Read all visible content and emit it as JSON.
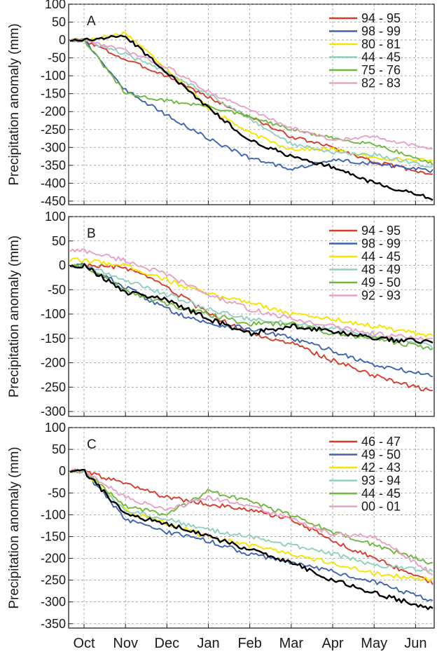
{
  "chart_data": [
    {
      "type": "line",
      "panel_label": "A",
      "ylabel": "Precipitation anomaly (mm)",
      "ylim": [
        -460,
        100
      ],
      "yticks": [
        100,
        50,
        0,
        -50,
        -100,
        -150,
        -200,
        -250,
        -300,
        -350,
        -400,
        -450
      ],
      "x": [
        "Oct",
        "Nov",
        "Dec",
        "Jan",
        "Feb",
        "Mar",
        "Apr",
        "May",
        "Jun"
      ],
      "grid": "dashed",
      "legend_position": "top-right",
      "series": [
        {
          "name": "94 - 95",
          "color": "#d93b2b",
          "values": [
            0,
            -55,
            -100,
            -160,
            -215,
            -270,
            -300,
            -340,
            -365
          ]
        },
        {
          "name": "98 - 99",
          "color": "#3f63b0",
          "values": [
            0,
            -140,
            -210,
            -275,
            -330,
            -360,
            -335,
            -345,
            -360
          ]
        },
        {
          "name": "80 - 81",
          "color": "#f5e400",
          "values": [
            0,
            20,
            -80,
            -190,
            -260,
            -305,
            -305,
            -330,
            -335
          ]
        },
        {
          "name": "44 - 45",
          "color": "#8fd0bf",
          "values": [
            0,
            -40,
            -90,
            -150,
            -220,
            -290,
            -315,
            -320,
            -345
          ]
        },
        {
          "name": "75 - 76",
          "color": "#6fb83d",
          "values": [
            0,
            -150,
            -170,
            -185,
            -215,
            -250,
            -275,
            -290,
            -330
          ]
        },
        {
          "name": "82 - 83",
          "color": "#e8a0c8",
          "values": [
            0,
            -30,
            -75,
            -145,
            -195,
            -245,
            -280,
            -270,
            -295
          ]
        },
        {
          "name": "",
          "color": "#000000",
          "values": [
            0,
            10,
            -90,
            -190,
            -280,
            -325,
            -355,
            -400,
            -430
          ]
        }
      ]
    },
    {
      "type": "line",
      "panel_label": "B",
      "ylabel": "Precipitation anomaly (mm)",
      "ylim": [
        -310,
        100
      ],
      "yticks": [
        100,
        50,
        0,
        -50,
        -100,
        -150,
        -200,
        -250,
        -300
      ],
      "x": [
        "Oct",
        "Nov",
        "Dec",
        "Jan",
        "Feb",
        "Mar",
        "Apr",
        "May",
        "Jun"
      ],
      "grid": "dashed",
      "legend_position": "top-right",
      "series": [
        {
          "name": "94 - 95",
          "color": "#d93b2b",
          "values": [
            0,
            -5,
            -45,
            -100,
            -140,
            -160,
            -195,
            -225,
            -250
          ]
        },
        {
          "name": "98 - 99",
          "color": "#3f63b0",
          "values": [
            0,
            -45,
            -90,
            -120,
            -130,
            -150,
            -175,
            -205,
            -220
          ]
        },
        {
          "name": "44 - 45",
          "color": "#f5e400",
          "values": [
            10,
            0,
            -30,
            -60,
            -75,
            -100,
            -110,
            -125,
            -140
          ]
        },
        {
          "name": "48 - 49",
          "color": "#8fd0bf",
          "values": [
            0,
            -30,
            -60,
            -90,
            -110,
            -120,
            -130,
            -145,
            -160
          ]
        },
        {
          "name": "49 - 50",
          "color": "#6fb83d",
          "values": [
            0,
            -50,
            -80,
            -100,
            -120,
            -120,
            -140,
            -150,
            -165
          ]
        },
        {
          "name": "92 - 93",
          "color": "#e8a0c8",
          "values": [
            30,
            10,
            -20,
            -60,
            -90,
            -110,
            -125,
            -140,
            -150
          ]
        },
        {
          "name": "",
          "color": "#000000",
          "values": [
            0,
            -55,
            -70,
            -110,
            -140,
            -125,
            -135,
            -150,
            -155
          ]
        }
      ]
    },
    {
      "type": "line",
      "panel_label": "C",
      "ylabel": "Precipitation anomaly (mm)",
      "ylim": [
        -360,
        100
      ],
      "yticks": [
        100,
        50,
        0,
        -50,
        -100,
        -150,
        -200,
        -250,
        -300,
        -350
      ],
      "x": [
        "Oct",
        "Nov",
        "Dec",
        "Jan",
        "Feb",
        "Mar",
        "Apr",
        "May",
        "Jun"
      ],
      "grid": "dashed",
      "legend_position": "top-right",
      "series": [
        {
          "name": "46 - 47",
          "color": "#d93b2b",
          "values": [
            0,
            -30,
            -60,
            -75,
            -90,
            -110,
            -160,
            -200,
            -240
          ]
        },
        {
          "name": "49 - 50",
          "color": "#3f63b0",
          "values": [
            0,
            -110,
            -140,
            -160,
            -190,
            -210,
            -230,
            -255,
            -285
          ]
        },
        {
          "name": "42 - 43",
          "color": "#f5e400",
          "values": [
            0,
            -90,
            -120,
            -150,
            -170,
            -190,
            -210,
            -235,
            -245
          ]
        },
        {
          "name": "93 - 94",
          "color": "#8fd0bf",
          "values": [
            0,
            -90,
            -110,
            -135,
            -150,
            -170,
            -190,
            -215,
            -225
          ]
        },
        {
          "name": "44 - 45",
          "color": "#6fb83d",
          "values": [
            0,
            -80,
            -100,
            -45,
            -70,
            -100,
            -140,
            -170,
            -200
          ]
        },
        {
          "name": "00 - 01",
          "color": "#e8a0c8",
          "values": [
            0,
            -60,
            -90,
            -60,
            -80,
            -110,
            -145,
            -150,
            -210
          ]
        },
        {
          "name": "",
          "color": "#000000",
          "values": [
            0,
            -100,
            -120,
            -150,
            -180,
            -210,
            -250,
            -280,
            -305
          ]
        }
      ]
    }
  ]
}
